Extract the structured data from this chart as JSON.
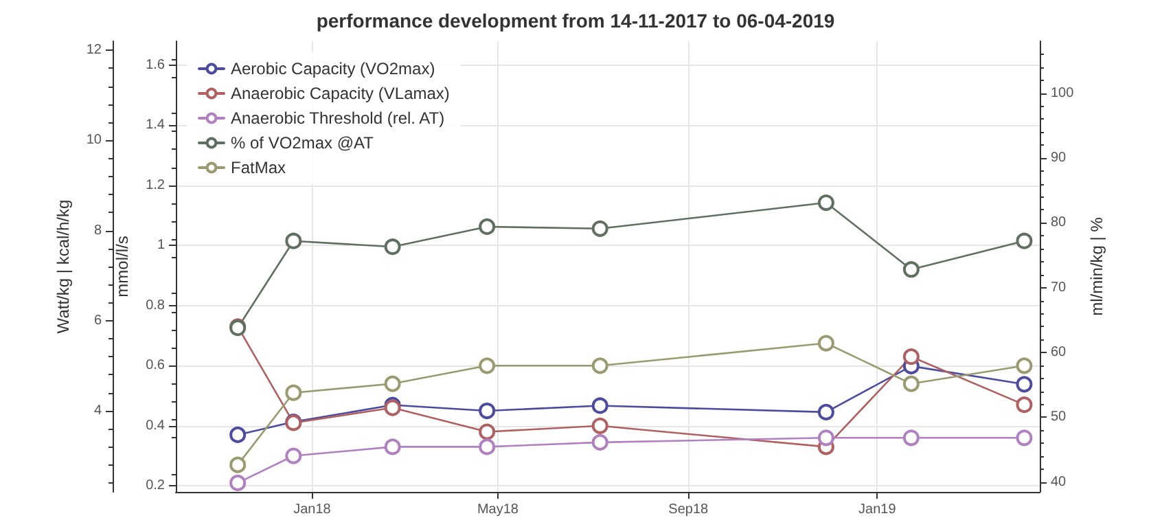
{
  "chart_data": {
    "type": "line",
    "title": "performance development from 14-11-2017 to 06-04-2019",
    "ylabel": "mmol/l/s",
    "y2label": "ml/min/kg | %",
    "y3label": "Watt/kg | kcal/h/kg",
    "x": [
      "2017-11-14",
      "2017-12-20",
      "2018-02-22",
      "2018-04-24",
      "2018-07-06",
      "2018-11-29",
      "2019-01-23",
      "2019-04-06"
    ],
    "xlim": [
      "2017-10-05",
      "2019-04-16"
    ],
    "xticks": [
      {
        "value": "2018-01-01",
        "label": "Jan18"
      },
      {
        "value": "2018-05-01",
        "label": "May18"
      },
      {
        "value": "2018-09-01",
        "label": "Sep18"
      },
      {
        "value": "2019-01-01",
        "label": "Jan19"
      }
    ],
    "ylim": [
      0.18,
      1.68
    ],
    "yticks": [
      0.2,
      0.4,
      0.6,
      0.8,
      1,
      1.2,
      1.4,
      1.6
    ],
    "y2lim": [
      38.5,
      108
    ],
    "y2ticks": [
      40,
      50,
      60,
      70,
      80,
      90,
      100
    ],
    "y3lim": [
      2.2,
      12.2
    ],
    "y3ticks": [
      4,
      6,
      8,
      10,
      12
    ],
    "series": [
      {
        "name": "Aerobic Capacity (VO2max)",
        "color": "#4b4ba0",
        "axis": "y2",
        "values": [
          47.3,
          49.3,
          51.9,
          51.0,
          51.8,
          50.8,
          57.9,
          55.1
        ]
      },
      {
        "name": "Anaerobic Capacity (VLamax)",
        "color": "#b06060",
        "axis": "y",
        "values": [
          0.73,
          0.41,
          0.46,
          0.38,
          0.4,
          0.33,
          0.63,
          0.47
        ]
      },
      {
        "name": "Anaerobic Threshold (rel. AT)",
        "color": "#b080c0",
        "axis": "y3",
        "values": [
          2.4,
          3.0,
          3.2,
          3.2,
          3.3,
          3.4,
          3.4,
          3.4
        ]
      },
      {
        "name": "% of VO2max @AT",
        "color": "#607060",
        "axis": "y2",
        "values": [
          63.8,
          77.2,
          76.3,
          79.4,
          79.1,
          83.1,
          72.8,
          77.2
        ]
      },
      {
        "name": "FatMax",
        "color": "#9a9a70",
        "axis": "y3",
        "values": [
          2.8,
          4.4,
          4.6,
          5.0,
          5.0,
          5.5,
          4.6,
          5.0
        ]
      }
    ],
    "grid": true,
    "legend": "top left",
    "marker": "circle",
    "line_style": "solid"
  }
}
